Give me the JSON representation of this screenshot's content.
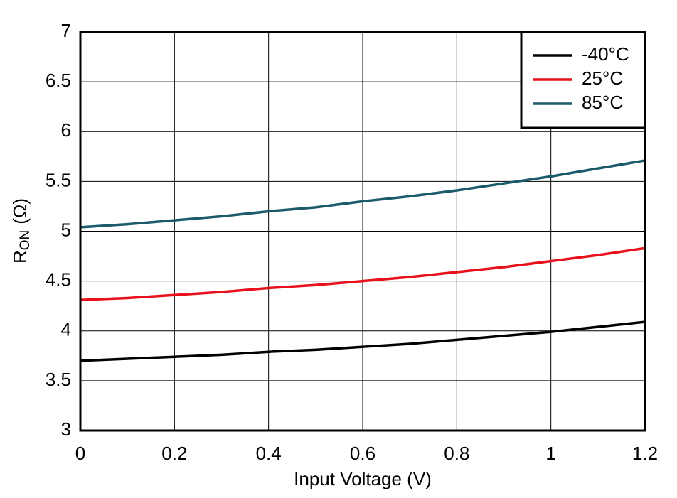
{
  "chart_data": {
    "type": "line",
    "x_label": "Input Voltage (V)",
    "y_label": {
      "text": "R",
      "subscript": "ON",
      "suffix": "(Ω)"
    },
    "x": [
      0,
      0.1,
      0.2,
      0.3,
      0.4,
      0.5,
      0.6,
      0.7,
      0.8,
      0.9,
      1.0,
      1.1,
      1.2
    ],
    "series": [
      {
        "name": "-40°C",
        "color": "#000000",
        "values": [
          3.7,
          3.72,
          3.74,
          3.76,
          3.79,
          3.81,
          3.84,
          3.87,
          3.91,
          3.95,
          3.99,
          4.04,
          4.09
        ]
      },
      {
        "name": "25°C",
        "color": "#e8101a",
        "values": [
          4.31,
          4.33,
          4.36,
          4.39,
          4.43,
          4.46,
          4.5,
          4.54,
          4.59,
          4.64,
          4.7,
          4.76,
          4.83
        ]
      },
      {
        "name": "85°C",
        "color": "#1b5a6b",
        "values": [
          5.04,
          5.07,
          5.11,
          5.15,
          5.2,
          5.24,
          5.3,
          5.35,
          5.41,
          5.48,
          5.55,
          5.63,
          5.71
        ]
      }
    ],
    "xlim": [
      0,
      1.2
    ],
    "xticks": [
      0,
      0.2,
      0.4,
      0.6,
      0.8,
      1,
      1.2
    ],
    "ylim": [
      3,
      7
    ],
    "yticks": [
      3,
      3.5,
      4,
      4.5,
      5,
      5.5,
      6,
      6.5,
      7
    ],
    "grid": true,
    "legend": "top-right"
  }
}
